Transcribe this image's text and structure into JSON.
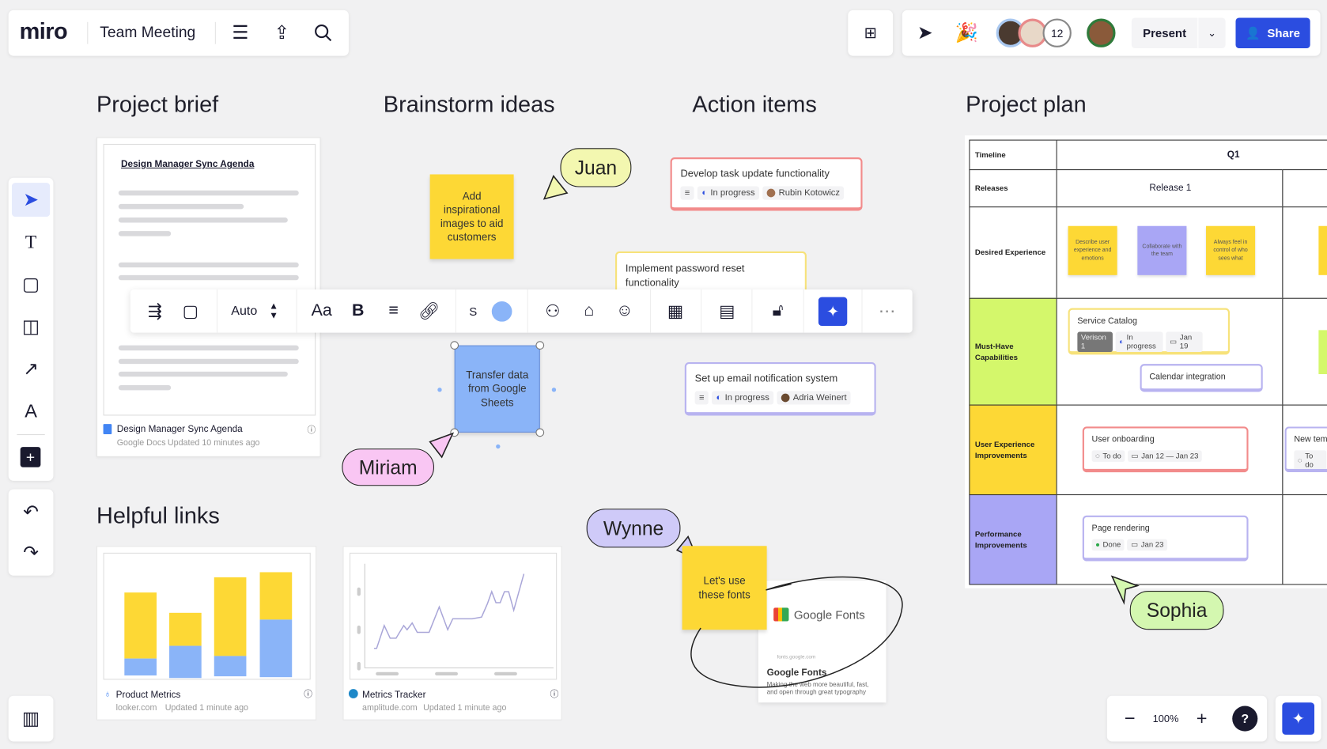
{
  "header": {
    "logo": "miro",
    "board_title": "Team Meeting"
  },
  "collab": {
    "extra_count": "12",
    "present_label": "Present",
    "share_label": "Share"
  },
  "sections": {
    "brief": "Project brief",
    "brainstorm": "Brainstorm ideas",
    "actions": "Action items",
    "plan": "Project plan",
    "links": "Helpful links"
  },
  "doc": {
    "heading": "Design Manager Sync Agenda",
    "name": "Design Manager Sync Agenda",
    "source": "Google Docs",
    "updated": "Updated 10 minutes ago"
  },
  "stickies": {
    "brainstorm": "Add inspirational images to aid customers",
    "selected": "Transfer data from Google Sheets",
    "fonts": "Let's use these fonts"
  },
  "cursors": {
    "juan": "Juan",
    "miriam": "Miriam",
    "wynne": "Wynne",
    "sophia": "Sophia"
  },
  "action_items": [
    {
      "title": "Develop task update functionality",
      "status": "In progress",
      "assignee": "Rubin Kotowicz"
    },
    {
      "title": "Implement password reset functionality"
    },
    {
      "title": "Set up email notification system",
      "status": "In progress",
      "assignee": "Adria Weinert"
    }
  ],
  "format_toolbar": {
    "size": "Auto",
    "font": "Aa",
    "bold": "B",
    "stroke": "S",
    "color": "#8ab4f8"
  },
  "plan": {
    "timeline_label": "Timeline",
    "quarter": "Q1",
    "releases_label": "Releases",
    "release": "Release 1",
    "rows": [
      "Desired Experience",
      "Must-Have Capabilities",
      "User Experience Improvements",
      "Performance Improvements"
    ],
    "desired": [
      "Describe user experience and emotions",
      "Collaborate with the team",
      "Always feel in control of who sees what"
    ],
    "service_catalog": {
      "title": "Service Catalog",
      "version": "Verison 1",
      "status": "In progress",
      "date": "Jan 19"
    },
    "calendar": "Calendar integration",
    "onboarding": {
      "title": "User onboarding",
      "status": "To do",
      "date": "Jan 12 — Jan 23"
    },
    "new_item": {
      "title": "New tem",
      "status": "To do"
    },
    "rendering": {
      "title": "Page rendering",
      "status": "Done",
      "date": "Jan 23"
    }
  },
  "links": [
    {
      "name": "Product Metrics",
      "source": "looker.com",
      "updated": "Updated 1 minute ago"
    },
    {
      "name": "Metrics Tracker",
      "source": "amplitude.com",
      "updated": "Updated 1 minute ago"
    }
  ],
  "google_fonts": {
    "logo_text": "Google Fonts",
    "url": "fonts.google.com",
    "title": "Google Fonts",
    "desc": "Making the web more beautiful, fast, and open through great typography"
  },
  "zoom": {
    "level": "100%",
    "help": "?"
  },
  "colors": {
    "accent": "#2b4de0",
    "yellow": "#fdd835",
    "lime": "#d4f76b",
    "purple": "#a9a6f5",
    "pink": "#f9c6f3",
    "green_bubble": "#d4f7b0"
  }
}
